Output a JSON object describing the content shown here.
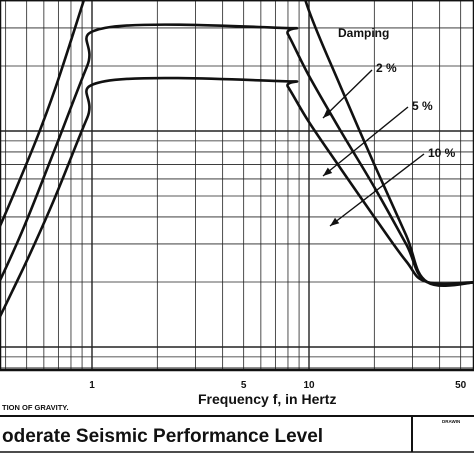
{
  "chart_data": {
    "type": "line",
    "x_scale": "log",
    "y_scale": "log",
    "grid": true,
    "xlabel": "Frequency f, in Hertz",
    "x_tick_labels": [
      {
        "value": 1,
        "label": "1"
      },
      {
        "value": 5,
        "label": "5"
      },
      {
        "value": 10,
        "label": "10"
      },
      {
        "value": 50,
        "label": "50"
      }
    ],
    "legend_title": "Damping",
    "series": [
      {
        "name": "2 %",
        "points": [
          [
            0.2,
            0.1
          ],
          [
            0.3,
            0.22
          ],
          [
            0.45,
            0.55
          ],
          [
            0.65,
            1.4
          ],
          [
            0.95,
            4.5
          ],
          [
            1.15,
            8.0
          ],
          [
            7.5,
            8.0
          ],
          [
            8.0,
            7.5
          ],
          [
            10,
            3.6
          ],
          [
            14,
            1.6
          ],
          [
            20,
            0.7
          ],
          [
            28,
            0.33
          ],
          [
            35,
            0.2
          ],
          [
            60,
            0.2
          ]
        ]
      },
      {
        "name": "5 %",
        "points": [
          [
            0.2,
            0.07
          ],
          [
            0.3,
            0.13
          ],
          [
            0.45,
            0.3
          ],
          [
            0.65,
            0.75
          ],
          [
            0.95,
            2.0
          ],
          [
            1.15,
            3.0
          ],
          [
            7.5,
            3.0
          ],
          [
            8.0,
            2.8
          ],
          [
            10,
            1.8
          ],
          [
            14,
            1.0
          ],
          [
            20,
            0.55
          ],
          [
            28,
            0.3
          ],
          [
            35,
            0.2
          ],
          [
            60,
            0.2
          ]
        ]
      },
      {
        "name": "10 %",
        "points": [
          [
            0.2,
            0.05
          ],
          [
            0.3,
            0.09
          ],
          [
            0.45,
            0.2
          ],
          [
            0.65,
            0.45
          ],
          [
            0.95,
            1.15
          ],
          [
            1.15,
            1.7
          ],
          [
            7.5,
            1.7
          ],
          [
            8.0,
            1.6
          ],
          [
            10,
            1.1
          ],
          [
            14,
            0.67
          ],
          [
            20,
            0.4
          ],
          [
            28,
            0.25
          ],
          [
            35,
            0.2
          ],
          [
            60,
            0.2
          ]
        ]
      }
    ],
    "annotation_left": "TION OF GRAVITY.",
    "title_block_text": "oderate Seismic Performance Level",
    "corner_label": "DRAWIN"
  }
}
